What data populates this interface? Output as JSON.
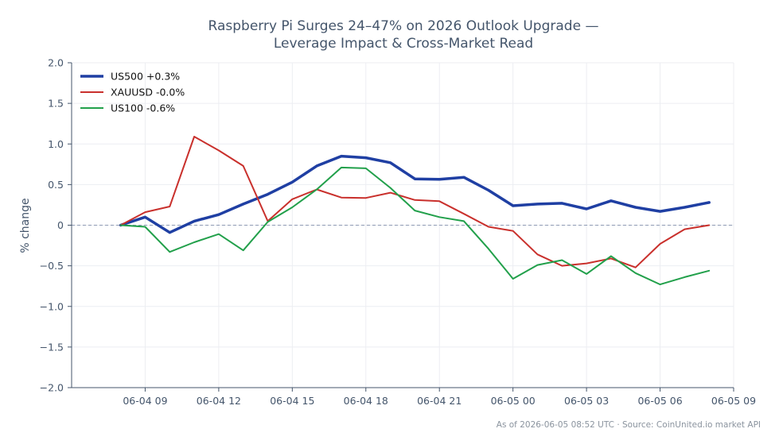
{
  "chart_data": {
    "type": "line",
    "title": [
      "Raspberry Pi Surges 24–47% on 2026 Outlook Upgrade —",
      "Leverage Impact & Cross-Market Read"
    ],
    "ylabel": "% change",
    "ylim": [
      -2.0,
      2.0
    ],
    "yticks": [
      2.0,
      1.5,
      1.0,
      0.5,
      0.0,
      -0.5,
      -1.0,
      -1.5,
      -2.0
    ],
    "ytick_labels": [
      "2.0",
      "1.5",
      "1.0",
      "0.5",
      "0",
      "−0.5",
      "−1.0",
      "−1.5",
      "−2.0"
    ],
    "x_range": [
      "2026-06-04 06:00",
      "2026-06-05 09:00"
    ],
    "xticks": [
      "2026-06-04 09:00",
      "2026-06-04 12:00",
      "2026-06-04 15:00",
      "2026-06-04 18:00",
      "2026-06-04 21:00",
      "2026-06-05 00:00",
      "2026-06-05 03:00",
      "2026-06-05 06:00",
      "2026-06-05 09:00"
    ],
    "xtick_labels": [
      "06-04 09",
      "06-04 12",
      "06-04 15",
      "06-04 18",
      "06-04 21",
      "06-05 00",
      "06-05 03",
      "06-05 06",
      "06-05 09"
    ],
    "x": [
      "2026-06-04 08:00",
      "2026-06-04 09:00",
      "2026-06-04 10:00",
      "2026-06-04 11:00",
      "2026-06-04 12:00",
      "2026-06-04 13:00",
      "2026-06-04 14:00",
      "2026-06-04 15:00",
      "2026-06-04 16:00",
      "2026-06-04 17:00",
      "2026-06-04 18:00",
      "2026-06-04 19:00",
      "2026-06-04 20:00",
      "2026-06-04 21:00",
      "2026-06-04 22:00",
      "2026-06-04 23:00",
      "2026-06-05 00:00",
      "2026-06-05 01:00",
      "2026-06-05 02:00",
      "2026-06-05 03:00",
      "2026-06-05 04:00",
      "2026-06-05 05:00",
      "2026-06-05 06:00",
      "2026-06-05 07:00",
      "2026-06-05 08:00"
    ],
    "series": [
      {
        "name": "US500 +0.3%",
        "color": "#1f3fa3",
        "width": 3.5,
        "values": [
          0.0,
          0.1,
          -0.09,
          0.05,
          0.13,
          0.26,
          0.38,
          0.53,
          0.73,
          0.85,
          0.83,
          0.77,
          0.57,
          0.565,
          0.59,
          0.43,
          0.24,
          0.26,
          0.27,
          0.2,
          0.3,
          0.22,
          0.17,
          0.22,
          0.28
        ]
      },
      {
        "name": "XAUUSD -0.0%",
        "color": "#c9302c",
        "width": 2,
        "values": [
          0.0,
          0.16,
          0.23,
          1.09,
          0.92,
          0.73,
          0.05,
          0.32,
          0.44,
          0.34,
          0.335,
          0.4,
          0.31,
          0.295,
          0.14,
          -0.02,
          -0.07,
          -0.36,
          -0.5,
          -0.47,
          -0.41,
          -0.52,
          -0.23,
          -0.05,
          0.0
        ]
      },
      {
        "name": "US100 -0.6%",
        "color": "#22a04b",
        "width": 2,
        "values": [
          0.0,
          -0.02,
          -0.33,
          -0.21,
          -0.11,
          -0.31,
          0.04,
          0.22,
          0.44,
          0.71,
          0.7,
          0.46,
          0.18,
          0.1,
          0.05,
          -0.29,
          -0.66,
          -0.49,
          -0.43,
          -0.6,
          -0.38,
          -0.59,
          -0.73,
          -0.64,
          -0.56
        ]
      }
    ],
    "reference_line": 0,
    "grid": true,
    "legend_position": "top-left",
    "footnote": "As of 2026-06-05 08:52 UTC · Source: CoinUnited.io market API"
  }
}
